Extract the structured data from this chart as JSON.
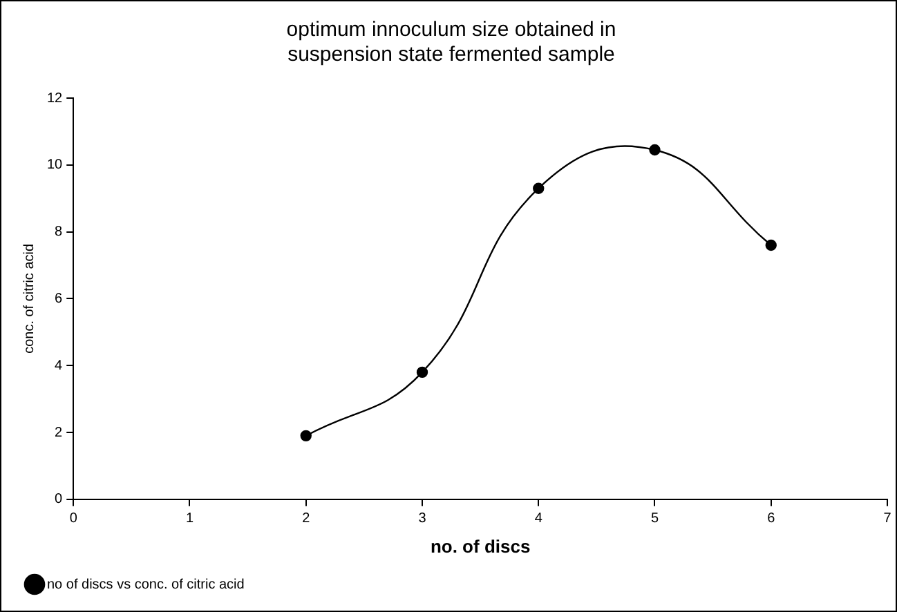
{
  "chart_data": {
    "type": "line",
    "title": [
      "optimum innoculum size obtained in",
      "suspension state fermented sample"
    ],
    "xlabel": "no. of discs",
    "ylabel": "conc. of citric acid",
    "x": [
      2,
      3,
      4,
      5,
      6
    ],
    "series": [
      {
        "name": "no of discs vs conc. of citric acid",
        "color": "#000000",
        "values": [
          1.9,
          3.8,
          9.3,
          10.45,
          7.6
        ]
      }
    ],
    "xlim": [
      0,
      7
    ],
    "xticks": [
      0,
      1,
      2,
      3,
      4,
      5,
      6,
      7
    ],
    "ylim": [
      0,
      12
    ],
    "yticks": [
      0,
      2,
      4,
      6,
      8,
      10,
      12
    ],
    "grid": false,
    "legend": "bottom left",
    "marker": "circle",
    "line_style": "solid"
  }
}
